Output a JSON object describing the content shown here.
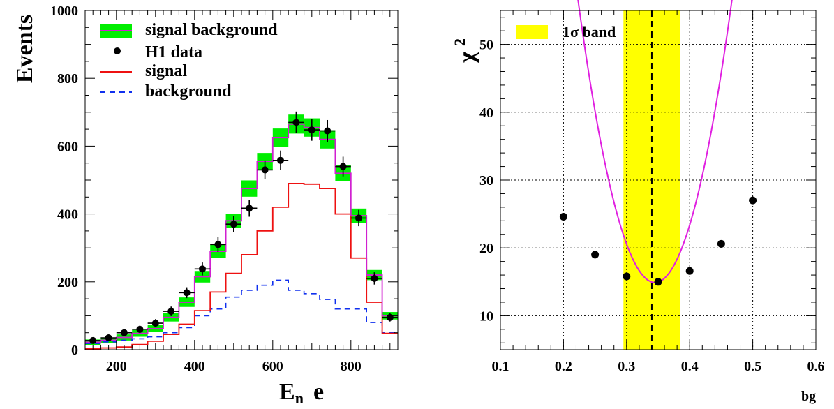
{
  "chart_data": [
    {
      "type": "step",
      "xlabel_main": "E",
      "xlabel_sub": "n",
      "xlabel_tail": "e",
      "ylabel": "Events",
      "xlim": [
        120,
        920
      ],
      "ylim": [
        0,
        1000
      ],
      "xticks": [
        200,
        400,
        600,
        800
      ],
      "yticks": [
        0,
        200,
        400,
        600,
        800,
        1000
      ],
      "grid": false,
      "legend_position": "top-left",
      "bin_edges": [
        120,
        160,
        200,
        240,
        280,
        320,
        360,
        400,
        440,
        480,
        520,
        560,
        600,
        640,
        680,
        720,
        760,
        800,
        840,
        880,
        920
      ],
      "series": [
        {
          "name": "signal background",
          "style": "band",
          "color": "#00ee00",
          "line_color": "#d020d0",
          "values": [
            22,
            28,
            36,
            48,
            62,
            95,
            140,
            215,
            290,
            380,
            475,
            555,
            625,
            665,
            655,
            620,
            520,
            395,
            220,
            100
          ],
          "band_half_height": [
            8,
            8,
            9,
            10,
            10,
            12,
            14,
            17,
            19,
            21,
            24,
            25,
            27,
            28,
            27,
            27,
            24,
            21,
            15,
            11
          ]
        },
        {
          "name": "H1 data",
          "style": "points",
          "color": "#000000",
          "x": [
            140,
            180,
            220,
            260,
            300,
            340,
            380,
            420,
            460,
            500,
            540,
            580,
            620,
            660,
            700,
            740,
            780,
            820,
            860,
            900
          ],
          "values": [
            27,
            35,
            50,
            60,
            78,
            113,
            168,
            238,
            310,
            370,
            417,
            530,
            558,
            670,
            648,
            645,
            540,
            388,
            210,
            95
          ],
          "yerr": [
            8,
            8,
            10,
            11,
            12,
            14,
            16,
            19,
            22,
            24,
            25,
            28,
            29,
            32,
            32,
            32,
            29,
            24,
            18,
            12
          ]
        },
        {
          "name": "signal",
          "style": "step",
          "color": "#ee1111",
          "values": [
            3,
            5,
            8,
            15,
            25,
            45,
            75,
            115,
            170,
            225,
            280,
            350,
            420,
            490,
            488,
            475,
            400,
            270,
            140,
            48
          ]
        },
        {
          "name": "background",
          "style": "dashed-step",
          "color": "#1030ee",
          "values": [
            18,
            23,
            28,
            32,
            38,
            50,
            65,
            100,
            120,
            155,
            175,
            190,
            205,
            175,
            165,
            148,
            120,
            120,
            80,
            50
          ]
        }
      ]
    },
    {
      "type": "scatter-with-fit",
      "ylabel": "χ",
      "ylabel_sup": "2",
      "xlabel": "bg",
      "xlim": [
        0.1,
        0.6
      ],
      "ylim": [
        5,
        55
      ],
      "xticks": [
        0.1,
        0.2,
        0.3,
        0.4,
        0.5,
        0.6
      ],
      "yticks": [
        10,
        20,
        30,
        40,
        50
      ],
      "grid": true,
      "legend_position": "top-left",
      "band": {
        "name": "1σ band",
        "from": 0.295,
        "to": 0.385,
        "color": "#ffff00"
      },
      "best_fit_x": 0.34,
      "points": {
        "x": [
          0.2,
          0.25,
          0.3,
          0.35,
          0.4,
          0.45,
          0.5
        ],
        "y": [
          24.6,
          19.0,
          15.8,
          15.0,
          16.6,
          20.6,
          27.0
        ],
        "color": "#000000"
      },
      "fit_curve": {
        "type": "parabola",
        "vertex_x": 0.345,
        "vertex_y": 14.9,
        "curvature": 2800,
        "color": "#e020e0"
      }
    }
  ]
}
